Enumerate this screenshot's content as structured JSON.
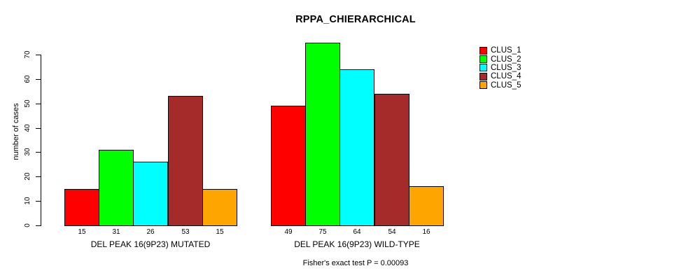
{
  "chart_data": {
    "type": "bar",
    "title": "RPPA_CHIERARCHICAL",
    "ylabel": "number of cases",
    "xlabel": "",
    "footer": "Fisher's exact test P = 0.00093",
    "ylim": [
      0,
      70
    ],
    "y_ticks": [
      0,
      10,
      20,
      30,
      40,
      50,
      60,
      70
    ],
    "grid": false,
    "value_labels_shown": true,
    "series_colors": [
      "#FF0000",
      "#00FF00",
      "#00FFFF",
      "#A52A2A",
      "#FFA500"
    ],
    "legend": {
      "position": "top-right",
      "entries": [
        {
          "label": "CLUS_1",
          "color": "#FF0000"
        },
        {
          "label": "CLUS_2",
          "color": "#00FF00"
        },
        {
          "label": "CLUS_3",
          "color": "#00FFFF"
        },
        {
          "label": "CLUS_4",
          "color": "#A52A2A"
        },
        {
          "label": "CLUS_5",
          "color": "#FFA500"
        }
      ]
    },
    "groups": [
      {
        "label": "DEL PEAK 16(9P23) MUTATED",
        "values": [
          15,
          31,
          26,
          53,
          15
        ]
      },
      {
        "label": "DEL PEAK 16(9P23) WILD-TYPE",
        "values": [
          49,
          75,
          64,
          54,
          16
        ]
      }
    ]
  }
}
